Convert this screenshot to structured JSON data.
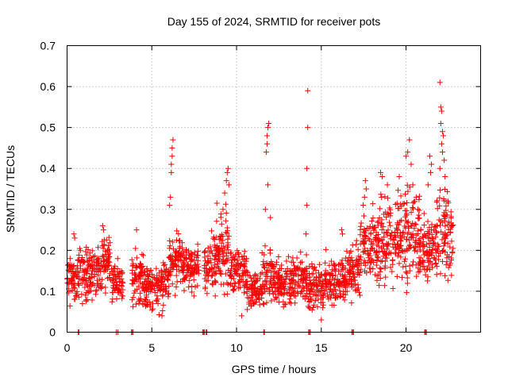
{
  "chart_data": {
    "type": "scatter",
    "title": "Day 155 of 2024, SRMTID for receiver pots",
    "xlabel": "GPS time / hours",
    "ylabel": "SRMTID / TECUs",
    "xlim": [
      0,
      24.4
    ],
    "ylim": [
      0,
      0.7
    ],
    "xticks": [
      0,
      5,
      10,
      15,
      20
    ],
    "xtick_labels": [
      "0",
      "5",
      "10",
      "15",
      "20"
    ],
    "yticks": [
      0,
      0.1,
      0.2,
      0.3,
      0.4,
      0.5,
      0.6,
      0.7
    ],
    "ytick_labels": [
      "0",
      "0.1",
      "0.2",
      "0.3",
      "0.4",
      "0.5",
      "0.6",
      "0.7"
    ],
    "grid": true,
    "marker": "+",
    "color": "#ff0000",
    "segments": [
      {
        "x_start": 0.0,
        "x_end": 0.6,
        "y_center": 0.13,
        "y_spread": 0.05
      },
      {
        "x_start": 0.6,
        "x_end": 1.2,
        "y_center": 0.14,
        "y_spread": 0.06
      },
      {
        "x_start": 1.2,
        "x_end": 2.0,
        "y_center": 0.15,
        "y_spread": 0.05
      },
      {
        "x_start": 2.0,
        "x_end": 2.6,
        "y_center": 0.17,
        "y_spread": 0.06
      },
      {
        "x_start": 2.6,
        "x_end": 3.3,
        "y_center": 0.12,
        "y_spread": 0.05
      },
      {
        "x_start": 3.8,
        "x_end": 4.6,
        "y_center": 0.13,
        "y_spread": 0.06
      },
      {
        "x_start": 4.6,
        "x_end": 5.5,
        "y_center": 0.11,
        "y_spread": 0.05
      },
      {
        "x_start": 5.5,
        "x_end": 6.0,
        "y_center": 0.12,
        "y_spread": 0.05
      },
      {
        "x_start": 6.0,
        "x_end": 6.8,
        "y_center": 0.17,
        "y_spread": 0.06
      },
      {
        "x_start": 6.8,
        "x_end": 7.8,
        "y_center": 0.16,
        "y_spread": 0.05
      },
      {
        "x_start": 8.1,
        "x_end": 8.8,
        "y_center": 0.17,
        "y_spread": 0.06
      },
      {
        "x_start": 8.8,
        "x_end": 9.6,
        "y_center": 0.2,
        "y_spread": 0.08
      },
      {
        "x_start": 9.6,
        "x_end": 10.6,
        "y_center": 0.15,
        "y_spread": 0.05
      },
      {
        "x_start": 10.6,
        "x_end": 11.5,
        "y_center": 0.1,
        "y_spread": 0.04
      },
      {
        "x_start": 11.5,
        "x_end": 12.2,
        "y_center": 0.14,
        "y_spread": 0.06
      },
      {
        "x_start": 12.2,
        "x_end": 13.2,
        "y_center": 0.12,
        "y_spread": 0.05
      },
      {
        "x_start": 13.2,
        "x_end": 14.2,
        "y_center": 0.13,
        "y_spread": 0.05
      },
      {
        "x_start": 14.2,
        "x_end": 15.2,
        "y_center": 0.11,
        "y_spread": 0.05
      },
      {
        "x_start": 15.2,
        "x_end": 16.5,
        "y_center": 0.13,
        "y_spread": 0.05
      },
      {
        "x_start": 16.5,
        "x_end": 17.3,
        "y_center": 0.15,
        "y_spread": 0.06
      },
      {
        "x_start": 17.3,
        "x_end": 18.3,
        "y_center": 0.2,
        "y_spread": 0.08
      },
      {
        "x_start": 18.3,
        "x_end": 19.5,
        "y_center": 0.22,
        "y_spread": 0.09
      },
      {
        "x_start": 19.5,
        "x_end": 20.8,
        "y_center": 0.24,
        "y_spread": 0.1
      },
      {
        "x_start": 20.8,
        "x_end": 21.8,
        "y_center": 0.2,
        "y_spread": 0.07
      },
      {
        "x_start": 21.8,
        "x_end": 22.8,
        "y_center": 0.24,
        "y_spread": 0.09
      }
    ],
    "spike_points": [
      {
        "x": 0.4,
        "y": 0.24
      },
      {
        "x": 0.45,
        "y": 0.23
      },
      {
        "x": 2.1,
        "y": 0.26
      },
      {
        "x": 2.15,
        "y": 0.25
      },
      {
        "x": 4.1,
        "y": 0.25
      },
      {
        "x": 6.05,
        "y": 0.31
      },
      {
        "x": 6.1,
        "y": 0.33
      },
      {
        "x": 6.15,
        "y": 0.39
      },
      {
        "x": 6.15,
        "y": 0.41
      },
      {
        "x": 6.2,
        "y": 0.43
      },
      {
        "x": 6.2,
        "y": 0.45
      },
      {
        "x": 6.25,
        "y": 0.47
      },
      {
        "x": 9.3,
        "y": 0.34
      },
      {
        "x": 9.4,
        "y": 0.37
      },
      {
        "x": 9.45,
        "y": 0.39
      },
      {
        "x": 9.5,
        "y": 0.4
      },
      {
        "x": 9.55,
        "y": 0.36
      },
      {
        "x": 9.2,
        "y": 0.3
      },
      {
        "x": 11.75,
        "y": 0.44
      },
      {
        "x": 11.8,
        "y": 0.46
      },
      {
        "x": 11.8,
        "y": 0.48
      },
      {
        "x": 11.85,
        "y": 0.5
      },
      {
        "x": 11.9,
        "y": 0.51
      },
      {
        "x": 11.85,
        "y": 0.36
      },
      {
        "x": 11.7,
        "y": 0.3
      },
      {
        "x": 12.0,
        "y": 0.28
      },
      {
        "x": 14.1,
        "y": 0.24
      },
      {
        "x": 14.15,
        "y": 0.31
      },
      {
        "x": 14.15,
        "y": 0.4
      },
      {
        "x": 14.2,
        "y": 0.5
      },
      {
        "x": 14.2,
        "y": 0.59
      },
      {
        "x": 17.6,
        "y": 0.37
      },
      {
        "x": 17.65,
        "y": 0.35
      },
      {
        "x": 17.55,
        "y": 0.33
      },
      {
        "x": 18.5,
        "y": 0.39
      },
      {
        "x": 18.6,
        "y": 0.38
      },
      {
        "x": 18.9,
        "y": 0.36
      },
      {
        "x": 19.6,
        "y": 0.38
      },
      {
        "x": 20.0,
        "y": 0.43
      },
      {
        "x": 20.1,
        "y": 0.44
      },
      {
        "x": 20.2,
        "y": 0.47
      },
      {
        "x": 20.3,
        "y": 0.41
      },
      {
        "x": 20.4,
        "y": 0.36
      },
      {
        "x": 20.6,
        "y": 0.33
      },
      {
        "x": 20.7,
        "y": 0.3
      },
      {
        "x": 21.4,
        "y": 0.43
      },
      {
        "x": 21.5,
        "y": 0.41
      },
      {
        "x": 21.45,
        "y": 0.39
      },
      {
        "x": 21.3,
        "y": 0.36
      },
      {
        "x": 22.0,
        "y": 0.61
      },
      {
        "x": 22.05,
        "y": 0.55
      },
      {
        "x": 22.1,
        "y": 0.54
      },
      {
        "x": 22.05,
        "y": 0.51
      },
      {
        "x": 22.15,
        "y": 0.49
      },
      {
        "x": 22.2,
        "y": 0.48
      },
      {
        "x": 22.1,
        "y": 0.46
      },
      {
        "x": 22.15,
        "y": 0.44
      },
      {
        "x": 22.25,
        "y": 0.42
      },
      {
        "x": 22.0,
        "y": 0.4
      },
      {
        "x": 22.3,
        "y": 0.38
      },
      {
        "x": 16.2,
        "y": 0.25
      },
      {
        "x": 16.25,
        "y": 0.24
      },
      {
        "x": 10.3,
        "y": 0.04
      },
      {
        "x": 15.0,
        "y": 0.03
      },
      {
        "x": 5.6,
        "y": 0.04
      }
    ],
    "zero_points": [
      {
        "x": 0.65,
        "y": 0
      },
      {
        "x": 0.7,
        "y": 0
      },
      {
        "x": 2.9,
        "y": 0
      },
      {
        "x": 3.0,
        "y": 0
      },
      {
        "x": 3.8,
        "y": 0
      },
      {
        "x": 3.85,
        "y": 0
      },
      {
        "x": 3.9,
        "y": 0
      },
      {
        "x": 8.0,
        "y": 0
      },
      {
        "x": 8.05,
        "y": 0
      },
      {
        "x": 8.1,
        "y": 0
      },
      {
        "x": 8.2,
        "y": 0
      },
      {
        "x": 8.25,
        "y": 0
      },
      {
        "x": 11.6,
        "y": 0
      },
      {
        "x": 11.65,
        "y": 0
      },
      {
        "x": 14.25,
        "y": 0
      },
      {
        "x": 14.3,
        "y": 0
      },
      {
        "x": 14.35,
        "y": 0
      },
      {
        "x": 16.8,
        "y": 0
      },
      {
        "x": 16.85,
        "y": 0
      },
      {
        "x": 16.9,
        "y": 0
      },
      {
        "x": 21.1,
        "y": 0
      },
      {
        "x": 21.15,
        "y": 0
      },
      {
        "x": 21.2,
        "y": 0
      }
    ]
  }
}
